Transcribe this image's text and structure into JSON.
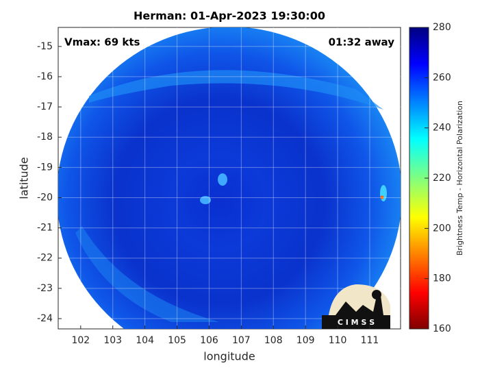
{
  "chart_data": {
    "type": "heatmap",
    "title": "Herman: 01-Apr-2023 19:30:00",
    "annotations": [
      "Vmax: 69 kts",
      "01:32 away"
    ],
    "xlabel": "longitude",
    "ylabel": "latitude",
    "xlim": [
      101.3,
      111.96
    ],
    "xticks": [
      102,
      103,
      104,
      105,
      106,
      107,
      108,
      109,
      110,
      111
    ],
    "ylim": [
      -24.34,
      -14.37
    ],
    "yticks": [
      -15,
      -16,
      -17,
      -18,
      -19,
      -20,
      -21,
      -22,
      -23,
      -24
    ],
    "grid": true,
    "colormap": "jet",
    "colorbar_label": "Brightness Temp - Horizontal Polarization",
    "clim": [
      160,
      280
    ],
    "cticks": [
      160,
      180,
      200,
      220,
      240,
      260,
      280
    ],
    "logo_text": "C I M S S"
  }
}
